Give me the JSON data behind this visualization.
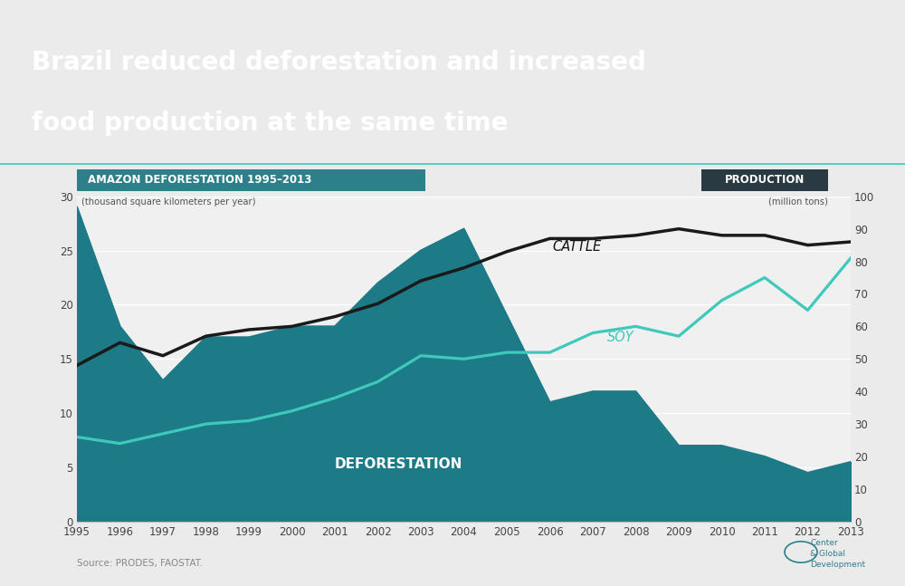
{
  "years": [
    1995,
    1996,
    1997,
    1998,
    1999,
    2000,
    2001,
    2002,
    2003,
    2004,
    2005,
    2006,
    2007,
    2008,
    2009,
    2010,
    2011,
    2012,
    2013
  ],
  "deforestation": [
    29,
    18,
    13,
    17,
    17,
    18,
    18,
    22,
    25,
    27,
    19,
    11,
    12,
    12,
    7,
    7,
    6,
    4.5,
    5.5
  ],
  "cattle": [
    48,
    55,
    51,
    57,
    59,
    60,
    63,
    67,
    74,
    78,
    83,
    87,
    87,
    88,
    90,
    88,
    88,
    85,
    86
  ],
  "soy": [
    26,
    24,
    27,
    30,
    31,
    34,
    38,
    43,
    51,
    50,
    52,
    52,
    58,
    60,
    57,
    68,
    75,
    65,
    81
  ],
  "header_bg_color": "#2D9AA5",
  "header_text_color": "#ffffff",
  "chart_bg_color": "#ebebeb",
  "plot_bg_color": "#f0f0f0",
  "deforestation_fill_color": "#1d7a87",
  "cattle_color": "#1a1a1a",
  "soy_color": "#3ec9bb",
  "left_label_box_color": "#2D7F8A",
  "right_label_box_color": "#2a3a42",
  "title_line1": "Brazil reduced deforestation and increased",
  "title_line2": "food production at the same time",
  "left_box_text": "AMAZON DEFORESTATION 1995–2013",
  "left_sub_text": "(thousand square kilometers per year)",
  "right_box_text": "PRODUCTION",
  "right_sub_text": "(million tons)",
  "deforestation_label": "DEFORESTATION",
  "cattle_label": "CATTLE",
  "soy_label": "SOY",
  "source_text": "Source: PRODES, FAOSTAT.",
  "cgd_text": "Center\n& Global\nDevelopment",
  "ylim_left": [
    0,
    30
  ],
  "ylim_right": [
    0,
    100
  ],
  "yticks_left": [
    0,
    5,
    10,
    15,
    20,
    25,
    30
  ],
  "yticks_right": [
    0,
    10,
    20,
    30,
    40,
    50,
    60,
    70,
    80,
    90,
    100
  ]
}
